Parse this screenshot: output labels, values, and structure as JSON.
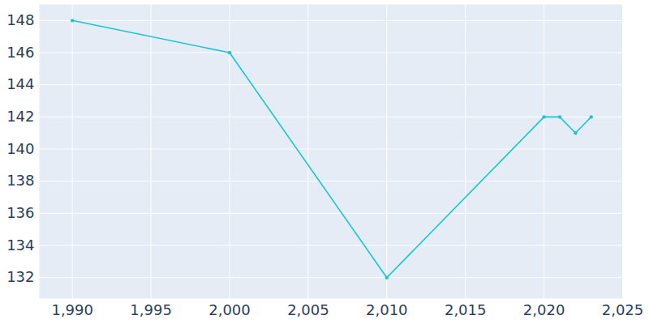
{
  "chart_data": {
    "type": "line",
    "x": [
      1990,
      2000,
      2010,
      2020,
      2021,
      2022,
      2023
    ],
    "values": [
      148,
      146,
      132,
      142,
      142,
      141,
      142
    ],
    "color": "#17c8d3",
    "marker": "circle",
    "xlim": [
      1987.9,
      2025
    ],
    "xticks": [
      1990,
      1995,
      2000,
      2005,
      2010,
      2015,
      2020,
      2025
    ],
    "ylim": [
      130.7,
      149
    ],
    "yticks": [
      132,
      134,
      136,
      138,
      140,
      142,
      144,
      146,
      148
    ],
    "grid": true
  }
}
